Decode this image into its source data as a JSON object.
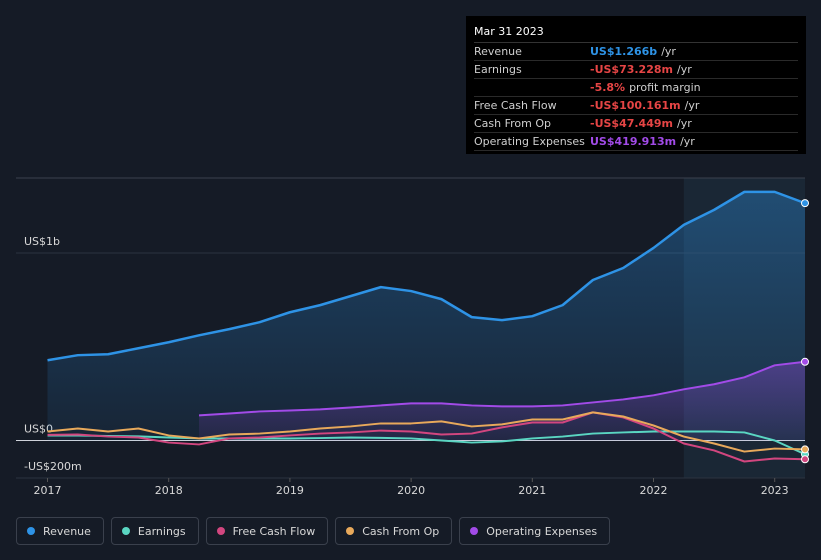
{
  "chart_data": {
    "type": "line",
    "x": [
      2017,
      2017.25,
      2017.5,
      2017.75,
      2018,
      2018.25,
      2018.5,
      2018.75,
      2019,
      2019.25,
      2019.5,
      2019.75,
      2020,
      2020.25,
      2020.5,
      2020.75,
      2021,
      2021.25,
      2021.5,
      2021.75,
      2022,
      2022.25,
      2022.5,
      2022.75,
      2023,
      2023.25
    ],
    "xlim": [
      2016.74,
      2023.25
    ],
    "xticks": [
      2017,
      2018,
      2019,
      2020,
      2021,
      2022,
      2023
    ],
    "ylim": [
      -200,
      1400
    ],
    "yticks": [
      {
        "value": 1000,
        "label": "US$1b"
      },
      {
        "value": 0,
        "label": "US$0"
      },
      {
        "value": -200,
        "label": "-US$200m"
      }
    ],
    "series": [
      {
        "name": "Revenue",
        "color": "#2e93e6",
        "fill": true,
        "values": [
          428,
          455,
          460,
          492,
          524,
          561,
          594,
          631,
          684,
          722,
          770,
          818,
          797,
          754,
          658,
          642,
          663,
          722,
          856,
          920,
          1027,
          1150,
          1230,
          1326,
          1326,
          1266
        ]
      },
      {
        "name": "Earnings",
        "color": "#5ad6c2",
        "values": [
          27,
          27,
          24,
          22,
          16,
          11,
          11,
          11,
          11,
          13,
          16,
          14,
          11,
          0,
          -11,
          -5,
          11,
          21,
          37,
          43,
          48,
          48,
          48,
          43,
          0,
          -73.228
        ]
      },
      {
        "name": "Free Cash Flow",
        "color": "#d2467f",
        "values": [
          30,
          32,
          21,
          16,
          -11,
          -21,
          11,
          16,
          27,
          37,
          43,
          53,
          48,
          32,
          37,
          70,
          96,
          96,
          150,
          123,
          64,
          -16,
          -53,
          -112,
          -96,
          -100.161
        ]
      },
      {
        "name": "Cash From Op",
        "color": "#e8a95b",
        "values": [
          48,
          64,
          48,
          64,
          27,
          11,
          32,
          37,
          48,
          64,
          75,
          91,
          91,
          102,
          75,
          86,
          112,
          112,
          150,
          128,
          80,
          21,
          -16,
          -59,
          -43,
          -47.449
        ]
      },
      {
        "name": "Operating Expenses",
        "color": "#a24be8",
        "fill": true,
        "values": [
          null,
          null,
          null,
          null,
          null,
          134,
          144,
          155,
          160,
          166,
          176,
          187,
          198,
          198,
          187,
          182,
          182,
          187,
          203,
          219,
          241,
          273,
          300,
          337,
          401,
          419.913
        ]
      }
    ]
  },
  "tooltip": {
    "date": "Mar 31 2023",
    "rows": [
      {
        "label": "Revenue",
        "value": "US$1.266b",
        "unit": "/yr",
        "color": "#2e93e6"
      },
      {
        "label": "Earnings",
        "value": "-US$73.228m",
        "unit": "/yr",
        "color": "#e64545"
      },
      {
        "margin": "-5.8%",
        "text": "profit margin",
        "color": "#e64545"
      },
      {
        "label": "Free Cash Flow",
        "value": "-US$100.161m",
        "unit": "/yr",
        "color": "#e64545"
      },
      {
        "label": "Cash From Op",
        "value": "-US$47.449m",
        "unit": "/yr",
        "color": "#e64545"
      },
      {
        "label": "Operating Expenses",
        "value": "US$419.913m",
        "unit": "/yr",
        "color": "#a24be8"
      }
    ]
  }
}
